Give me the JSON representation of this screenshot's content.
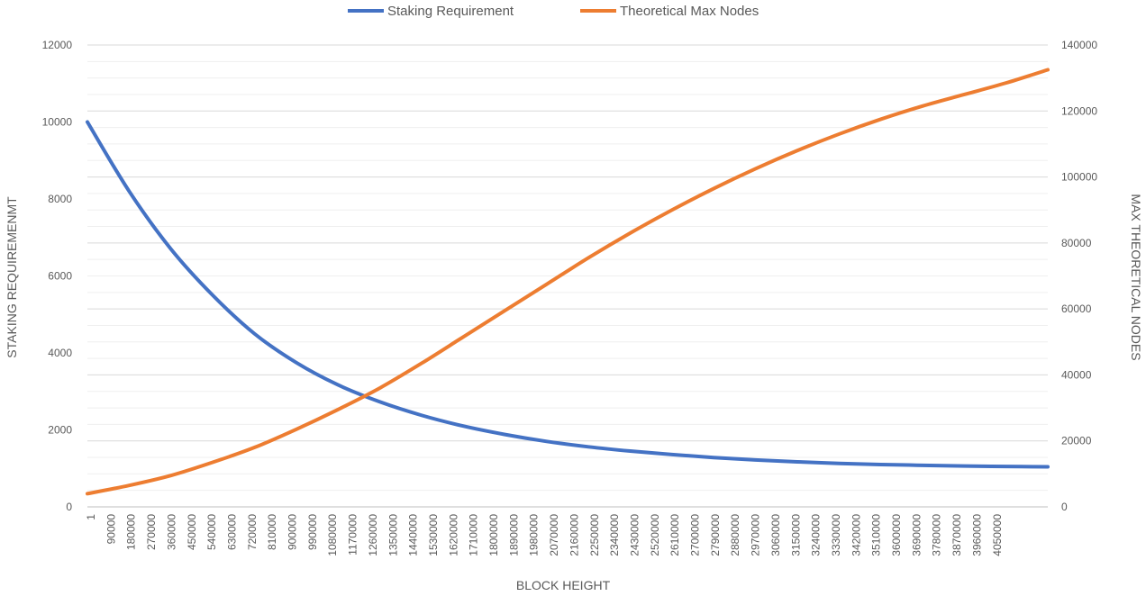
{
  "chart_data": {
    "type": "line",
    "title": "",
    "xlabel": "BLOCK HEIGHT",
    "ylabel": "STAKING REQUIREMENMT",
    "y2label": "MAX THEORETICAL NODES",
    "ylim": [
      0,
      12000
    ],
    "y2lim": [
      0,
      140000
    ],
    "xlim": [
      1,
      4140000
    ],
    "y_ticks": [
      "0",
      "2000",
      "4000",
      "6000",
      "8000",
      "10000",
      "12000"
    ],
    "y2_ticks": [
      "0",
      "20000",
      "40000",
      "60000",
      "80000",
      "100000",
      "120000",
      "140000"
    ],
    "x_ticks": [
      "1",
      "90000",
      "180000",
      "270000",
      "360000",
      "450000",
      "540000",
      "630000",
      "720000",
      "810000",
      "900000",
      "990000",
      "1080000",
      "1170000",
      "1260000",
      "1350000",
      "1440000",
      "1530000",
      "1620000",
      "1710000",
      "1800000",
      "1890000",
      "1980000",
      "2070000",
      "2160000",
      "2250000",
      "2340000",
      "2430000",
      "2520000",
      "2610000",
      "2700000",
      "2790000",
      "2880000",
      "2970000",
      "3060000",
      "3150000",
      "3240000",
      "3330000",
      "3420000",
      "3510000",
      "3600000",
      "3690000",
      "3780000",
      "3870000",
      "3960000",
      "4050000"
    ],
    "grid": true,
    "legend_position": "top",
    "series": [
      {
        "name": "Staking Requirement",
        "axis": "left",
        "color": "#4472C4",
        "x": [
          1,
          180000,
          360000,
          540000,
          720000,
          900000,
          1080000,
          1260000,
          1440000,
          1620000,
          1800000,
          1980000,
          2160000,
          2340000,
          2520000,
          2700000,
          2880000,
          3060000,
          3240000,
          3420000,
          3600000,
          3780000,
          3960000,
          4140000
        ],
        "values": [
          10000,
          8200,
          6700,
          5500,
          4500,
          3750,
          3170,
          2730,
          2380,
          2100,
          1880,
          1700,
          1560,
          1450,
          1360,
          1280,
          1220,
          1170,
          1130,
          1100,
          1080,
          1060,
          1050,
          1040
        ]
      },
      {
        "name": "Theoretical Max Nodes",
        "axis": "right",
        "color": "#ED7D31",
        "x": [
          1,
          180000,
          360000,
          540000,
          720000,
          900000,
          1080000,
          1260000,
          1440000,
          1620000,
          1800000,
          1980000,
          2160000,
          2340000,
          2520000,
          2700000,
          2880000,
          3060000,
          3240000,
          3420000,
          3600000,
          3780000,
          3960000,
          4140000
        ],
        "values": [
          4000,
          6500,
          9500,
          13500,
          18000,
          23500,
          29500,
          36000,
          43500,
          51500,
          59500,
          67500,
          75500,
          83000,
          90000,
          96500,
          102500,
          108000,
          113000,
          117500,
          121500,
          125000,
          128500,
          132500
        ]
      }
    ]
  }
}
